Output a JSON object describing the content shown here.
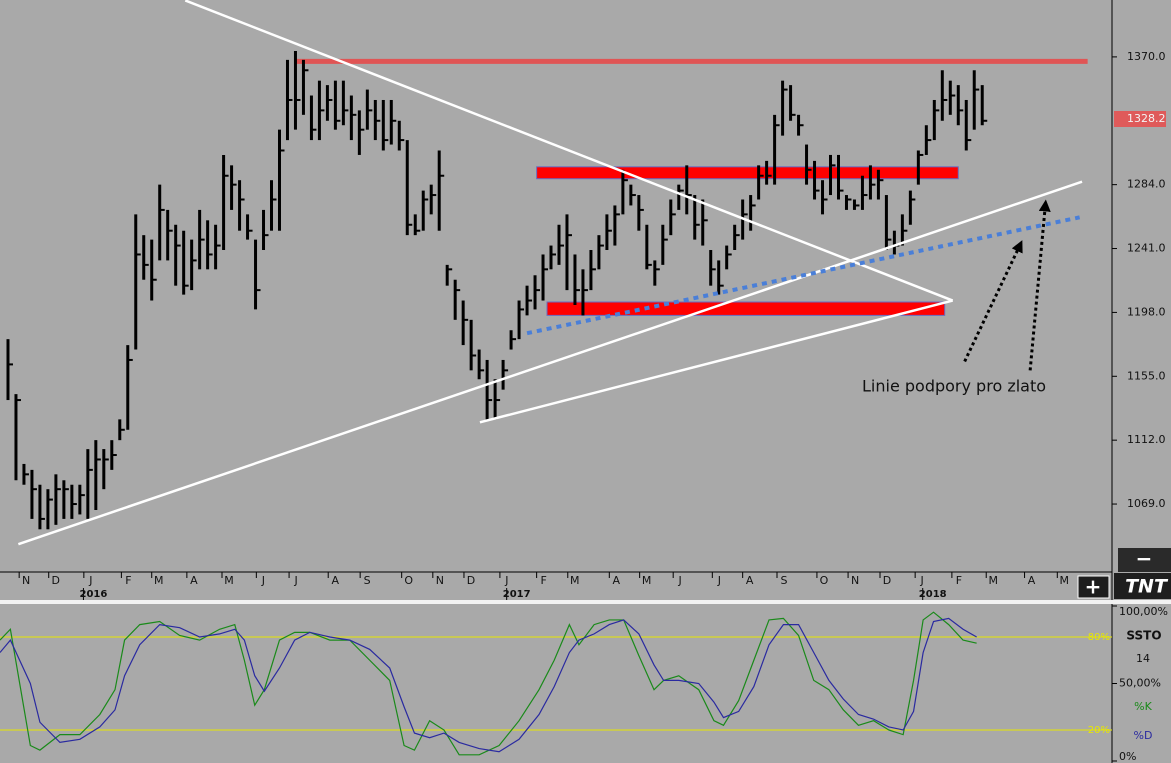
{
  "chart_data": [
    {
      "type": "ohlc",
      "color": "#000000",
      "x": [
        1,
        2,
        3,
        4,
        5,
        6,
        7,
        8,
        9,
        10,
        11,
        12,
        13,
        14,
        15,
        16,
        17,
        18,
        19,
        20,
        21,
        22,
        23,
        24,
        25,
        26,
        27,
        28,
        29,
        30,
        31,
        32,
        33,
        34,
        35,
        36,
        37,
        38,
        39,
        40,
        41,
        42,
        43,
        44,
        45,
        46,
        47,
        48,
        49,
        50,
        51,
        52,
        53,
        54,
        55,
        56,
        57,
        58,
        59,
        60,
        61,
        62,
        63,
        64,
        65,
        66,
        67,
        68,
        69,
        70,
        71,
        72,
        73,
        74,
        75,
        76,
        77,
        78,
        79,
        80,
        81,
        82,
        83,
        84,
        85,
        86,
        87,
        88,
        89,
        90,
        91,
        92,
        93,
        94,
        95,
        96,
        97,
        98,
        99,
        100,
        101,
        102,
        103,
        104,
        105,
        106,
        107,
        108,
        109,
        110,
        111,
        112,
        113,
        114,
        115,
        116,
        117,
        118,
        119,
        120,
        121,
        122,
        123
      ],
      "high": [
        1180,
        1143,
        1096,
        1092,
        1082,
        1079,
        1089,
        1085,
        1082,
        1082,
        1106,
        1112,
        1106,
        1112,
        1126,
        1176,
        1264,
        1250,
        1247,
        1284,
        1267,
        1257,
        1253,
        1247,
        1267,
        1260,
        1257,
        1304,
        1297,
        1287,
        1264,
        1247,
        1267,
        1287,
        1321,
        1368,
        1374,
        1368,
        1344,
        1354,
        1351,
        1354,
        1354,
        1344,
        1334,
        1348,
        1341,
        1341,
        1341,
        1327,
        1314,
        1264,
        1280,
        1284,
        1307,
        1230,
        1220,
        1206,
        1193,
        1173,
        1166,
        1153,
        1166,
        1186,
        1206,
        1216,
        1223,
        1237,
        1243,
        1257,
        1264,
        1237,
        1227,
        1240,
        1250,
        1264,
        1270,
        1294,
        1284,
        1277,
        1257,
        1233,
        1257,
        1274,
        1284,
        1297,
        1277,
        1274,
        1240,
        1233,
        1243,
        1257,
        1274,
        1277,
        1297,
        1300,
        1331,
        1354,
        1351,
        1331,
        1311,
        1300,
        1287,
        1304,
        1304,
        1277,
        1274,
        1290,
        1297,
        1294,
        1277,
        1253,
        1264,
        1280,
        1307,
        1324,
        1341,
        1361,
        1354,
        1351,
        1341,
        1361,
        1351
      ],
      "low": [
        1139,
        1085,
        1082,
        1059,
        1052,
        1052,
        1055,
        1059,
        1059,
        1062,
        1059,
        1065,
        1079,
        1092,
        1112,
        1119,
        1173,
        1220,
        1206,
        1233,
        1233,
        1216,
        1210,
        1213,
        1227,
        1227,
        1227,
        1240,
        1267,
        1253,
        1247,
        1200,
        1240,
        1253,
        1253,
        1314,
        1321,
        1331,
        1314,
        1314,
        1327,
        1321,
        1324,
        1314,
        1304,
        1321,
        1314,
        1307,
        1311,
        1307,
        1250,
        1250,
        1253,
        1264,
        1253,
        1216,
        1193,
        1176,
        1159,
        1153,
        1126,
        1126,
        1146,
        1173,
        1180,
        1196,
        1200,
        1206,
        1227,
        1230,
        1213,
        1203,
        1196,
        1213,
        1227,
        1240,
        1243,
        1264,
        1270,
        1253,
        1227,
        1216,
        1230,
        1250,
        1267,
        1264,
        1247,
        1243,
        1216,
        1210,
        1227,
        1240,
        1247,
        1253,
        1274,
        1284,
        1284,
        1317,
        1327,
        1317,
        1284,
        1274,
        1264,
        1277,
        1274,
        1267,
        1267,
        1267,
        1274,
        1274,
        1240,
        1237,
        1243,
        1257,
        1284,
        1304,
        1314,
        1327,
        1331,
        1324,
        1307,
        1321,
        1324
      ],
      "close": [
        1163,
        1139,
        1089,
        1079,
        1059,
        1072,
        1079,
        1079,
        1069,
        1075,
        1092,
        1099,
        1099,
        1102,
        1119,
        1166,
        1237,
        1230,
        1220,
        1267,
        1253,
        1243,
        1216,
        1233,
        1247,
        1237,
        1243,
        1290,
        1284,
        1274,
        1253,
        1213,
        1250,
        1274,
        1307,
        1341,
        1341,
        1361,
        1321,
        1334,
        1341,
        1327,
        1334,
        1331,
        1321,
        1334,
        1327,
        1314,
        1327,
        1314,
        1257,
        1253,
        1274,
        1277,
        1290,
        1227,
        1213,
        1193,
        1169,
        1159,
        1139,
        1139,
        1159,
        1180,
        1200,
        1206,
        1213,
        1227,
        1237,
        1243,
        1250,
        1213,
        1213,
        1227,
        1243,
        1253,
        1264,
        1287,
        1277,
        1267,
        1230,
        1227,
        1247,
        1264,
        1280,
        1277,
        1257,
        1260,
        1227,
        1216,
        1237,
        1250,
        1264,
        1270,
        1290,
        1290,
        1324,
        1348,
        1331,
        1324,
        1294,
        1280,
        1274,
        1297,
        1280,
        1274,
        1270,
        1277,
        1284,
        1287,
        1247,
        1243,
        1253,
        1274,
        1304,
        1314,
        1334,
        1341,
        1344,
        1334,
        1314,
        1348,
        1327
      ],
      "xlim": [
        0,
        139
      ],
      "ylim": [
        1024.6,
        1408.3
      ],
      "yticks": [
        {
          "value": 1370,
          "label": "1370.0"
        },
        {
          "value": 1284,
          "label": "1284.0"
        },
        {
          "value": 1241,
          "label": "1241.0"
        },
        {
          "value": 1198,
          "label": "1198.0"
        },
        {
          "value": 1155,
          "label": "1155.0"
        },
        {
          "value": 1112,
          "label": "1112.0"
        },
        {
          "value": 1069,
          "label": "1069.0"
        }
      ],
      "xticks": [
        {
          "value": 2.4,
          "label": "N"
        },
        {
          "value": 6.1,
          "label": "D"
        },
        {
          "value": 10.5,
          "label": "J"
        },
        {
          "value": 15.2,
          "label": "F"
        },
        {
          "value": 19,
          "label": "M"
        },
        {
          "value": 23.4,
          "label": "A"
        },
        {
          "value": 27.8,
          "label": "M"
        },
        {
          "value": 32.1,
          "label": "J"
        },
        {
          "value": 36.2,
          "label": "J"
        },
        {
          "value": 41.1,
          "label": "A"
        },
        {
          "value": 45.1,
          "label": "S"
        },
        {
          "value": 50.3,
          "label": "O"
        },
        {
          "value": 54.2,
          "label": "N"
        },
        {
          "value": 58.1,
          "label": "D"
        },
        {
          "value": 62.6,
          "label": "J"
        },
        {
          "value": 67.2,
          "label": "F"
        },
        {
          "value": 71.1,
          "label": "M"
        },
        {
          "value": 76.3,
          "label": "A"
        },
        {
          "value": 80.1,
          "label": "M"
        },
        {
          "value": 84.3,
          "label": "J"
        },
        {
          "value": 89.2,
          "label": "J"
        },
        {
          "value": 93,
          "label": "A"
        },
        {
          "value": 97.3,
          "label": "S"
        },
        {
          "value": 102.3,
          "label": "O"
        },
        {
          "value": 106.2,
          "label": "N"
        },
        {
          "value": 110.2,
          "label": "D"
        },
        {
          "value": 114.6,
          "label": "J"
        },
        {
          "value": 119.2,
          "label": "F"
        },
        {
          "value": 123.5,
          "label": "M"
        },
        {
          "value": 128.3,
          "label": "A"
        },
        {
          "value": 132.4,
          "label": "M"
        }
      ],
      "year_labels": [
        {
          "value": 11.7,
          "label": "2016"
        },
        {
          "value": 64.7,
          "label": "2017"
        },
        {
          "value": 116.8,
          "label": "2018"
        }
      ],
      "last_price": 1328.2,
      "last_price_color": "#df5a5a",
      "resistance": {
        "x": [
          36.9,
          136.2
        ],
        "y": 1367,
        "color": "#e05555"
      },
      "zones": [
        {
          "x": [
            67.2,
            120
          ],
          "y": [
            1288,
            1296
          ],
          "color": "#ff0000"
        },
        {
          "x": [
            68.5,
            118.3
          ],
          "y": [
            1196,
            1205
          ],
          "color": "#ff0000"
        }
      ],
      "trendlines": [
        {
          "x": [
            23.2,
            119.3
          ],
          "y": [
            1408,
            1206
          ],
          "color": "#ffffff",
          "style": "solid"
        },
        {
          "x": [
            2.3,
            135.5
          ],
          "y": [
            1042,
            1286
          ],
          "color": "#ffffff",
          "style": "solid"
        },
        {
          "x": [
            60.1,
            119.3
          ],
          "y": [
            1124,
            1206
          ],
          "color": "#ffffff",
          "style": "solid"
        },
        {
          "x": [
            66,
            135.2
          ],
          "y": [
            1184,
            1262
          ],
          "color": "#4a7fd8",
          "style": "dotted"
        },
        {
          "x": [
            120.8,
            127.7
          ],
          "y": [
            1165,
            1243
          ],
          "color": "#000000",
          "style": "arrow"
        },
        {
          "x": [
            129,
            130.9
          ],
          "y": [
            1159,
            1270
          ],
          "color": "#000000",
          "style": "arrow"
        }
      ],
      "note": "Linie podpory pro zlato"
    },
    {
      "type": "line",
      "indicator": "SSTO",
      "period": 14,
      "x": [
        0,
        1.3,
        3.8,
        5,
        7.5,
        10,
        12.5,
        14.4,
        15.6,
        17.5,
        20,
        22.5,
        25,
        27.5,
        29.4,
        30.6,
        31.9,
        33.1,
        35,
        36.9,
        38.8,
        41.3,
        43.8,
        46.3,
        48.8,
        50.6,
        51.9,
        53.8,
        55.6,
        57.5,
        60,
        62.5,
        65,
        67.5,
        69.4,
        71.3,
        72.5,
        74.4,
        76.3,
        78.1,
        80,
        81.9,
        83.1,
        85,
        87.5,
        89.4,
        90.6,
        92.5,
        94.4,
        96.3,
        98.1,
        100,
        101.9,
        103.8,
        105.6,
        107.5,
        109.4,
        111.3,
        113.1,
        114.4,
        115.6,
        116.9,
        118.8,
        120.6,
        122.3
      ],
      "series": [
        {
          "name": "%K",
          "color": "#1a8a1a",
          "values": [
            78,
            85,
            10,
            7,
            17,
            17,
            30,
            46,
            78,
            88,
            90,
            81,
            78,
            85,
            88,
            65,
            36,
            46,
            78,
            83,
            83,
            78,
            78,
            65,
            52,
            10,
            7,
            26,
            20,
            4,
            4,
            10,
            26,
            46,
            65,
            88,
            75,
            88,
            91,
            91,
            68,
            46,
            52,
            55,
            46,
            26,
            23,
            39,
            65,
            91,
            92,
            81,
            52,
            46,
            33,
            23,
            26,
            20,
            17,
            52,
            91,
            96,
            88,
            78,
            76
          ]
        },
        {
          "name": "%D",
          "color": "#2a2aa0",
          "values": [
            70,
            78,
            50,
            25,
            12,
            14,
            22,
            33,
            55,
            75,
            88,
            86,
            80,
            82,
            85,
            78,
            55,
            45,
            60,
            78,
            83,
            80,
            78,
            72,
            60,
            35,
            18,
            15,
            18,
            12,
            8,
            6,
            14,
            30,
            48,
            70,
            78,
            82,
            88,
            91,
            82,
            62,
            52,
            52,
            50,
            38,
            28,
            32,
            48,
            75,
            88,
            88,
            70,
            52,
            40,
            30,
            27,
            22,
            20,
            32,
            70,
            90,
            92,
            85,
            80
          ]
        }
      ],
      "xlim": [
        0,
        139
      ],
      "ylim": [
        0,
        100
      ],
      "yticks": [
        {
          "value": 100,
          "label": "100,00%"
        },
        {
          "value": 50,
          "label": "50,00%"
        },
        {
          "value": 0,
          "label": "0%"
        }
      ],
      "levels": [
        {
          "value": 80,
          "label": "80%"
        },
        {
          "value": 20,
          "label": "20%"
        }
      ],
      "level_color": "#e8e800"
    }
  ],
  "controls": {
    "zoom_out": "−",
    "zoom_in": "+",
    "logo": "TNT"
  }
}
